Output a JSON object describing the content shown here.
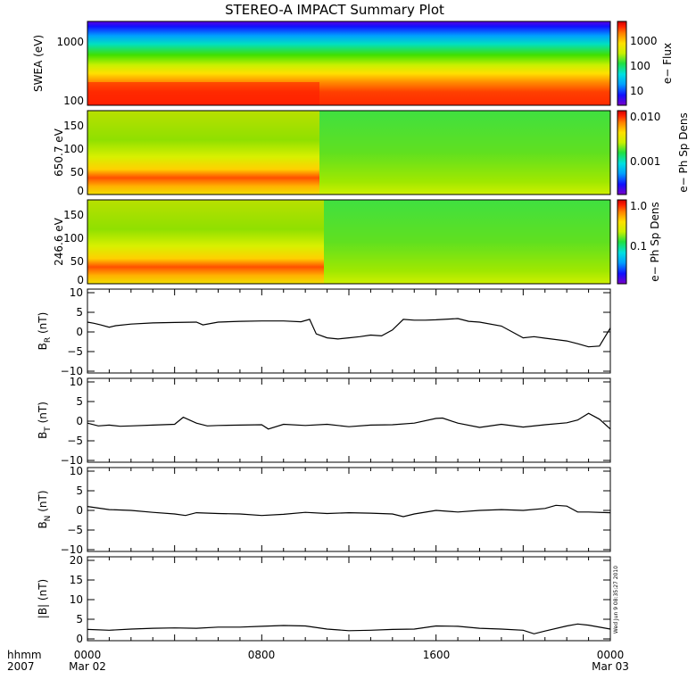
{
  "title": "STEREO-A IMPACT Summary Plot",
  "stamp": "Wed Jun 9 08:35:27 2010",
  "time_axis": {
    "corner_label": "hhmm",
    "corner_year": "2007",
    "ticks": [
      {
        "time": "0000",
        "date": "Mar 02"
      },
      {
        "time": "0800",
        "date": ""
      },
      {
        "time": "1600",
        "date": ""
      },
      {
        "time": "0000",
        "date": "Mar 03"
      }
    ]
  },
  "colors": {
    "line": "#000000",
    "background": "#ffffff",
    "colormap": [
      "#7a00c8",
      "#1010ff",
      "#00a0ff",
      "#00e0e0",
      "#20e040",
      "#c8f000",
      "#ffe000",
      "#ff8000",
      "#ff2000",
      "#d00000"
    ]
  },
  "chart_data": [
    {
      "type": "heatmap",
      "name": "swea",
      "ylabel": "SWEA (eV)",
      "yscale": "log",
      "yticks": [
        "1000",
        "100"
      ],
      "colorbar": {
        "label": "e− Flux",
        "scale": "log",
        "ticks": [
          "1000",
          "100",
          "10"
        ]
      },
      "description": "energy-time spectrogram; high flux (red) near 100 eV, falling to blue above ~1500 eV"
    },
    {
      "type": "heatmap",
      "name": "pad_650",
      "ylabel": "650.7 eV",
      "ylim": [
        0,
        180
      ],
      "yticks": [
        "150",
        "100",
        "50",
        "0"
      ],
      "colorbar": {
        "label": "e− Ph Sp Dens",
        "scale": "log",
        "ticks": [
          "0.010",
          "0.001"
        ]
      },
      "description": "pitch-angle distribution; enhanced (red) near 30-40 deg until ~10:00"
    },
    {
      "type": "heatmap",
      "name": "pad_246",
      "ylabel": "246.6 eV",
      "ylim": [
        0,
        180
      ],
      "yticks": [
        "150",
        "100",
        "50",
        "0"
      ],
      "colorbar": {
        "label": "e− Ph Sp Dens",
        "scale": "log",
        "ticks": [
          "1.0",
          "0.1"
        ]
      },
      "description": "pitch-angle distribution; enhanced (red) near 30-40 deg until ~10:00"
    },
    {
      "type": "line",
      "name": "br",
      "ylabel_main": "B",
      "ylabel_sub": "R",
      "ylabel_unit": " (nT)",
      "ylim": [
        -10,
        10
      ],
      "yticks": [
        "10",
        "5",
        "0",
        "−5",
        "−10"
      ],
      "x_hours": [
        0,
        0.3,
        0.6,
        1,
        1.3,
        2,
        3,
        4,
        5,
        5.3,
        6,
        7,
        8,
        9,
        9.8,
        10.2,
        10.5,
        11,
        11.5,
        12,
        12.5,
        13,
        13.5,
        14,
        14.5,
        15,
        15.5,
        16,
        17,
        17.5,
        18,
        19,
        19.5,
        20,
        20.5,
        21,
        22,
        22.5,
        23,
        23.5,
        24
      ],
      "y": [
        2.5,
        2.2,
        1.8,
        1.2,
        1.6,
        2,
        2.3,
        2.4,
        2.5,
        1.8,
        2.5,
        2.7,
        2.8,
        2.8,
        2.6,
        3.2,
        -0.5,
        -1.5,
        -1.8,
        -1.5,
        -1.2,
        -0.8,
        -1,
        0.5,
        3.2,
        3,
        3,
        3.1,
        3.4,
        2.7,
        2.5,
        1.5,
        0,
        -1.5,
        -1.2,
        -1.6,
        -2.3,
        -3,
        -3.8,
        -3.6,
        1
      ]
    },
    {
      "type": "line",
      "name": "bt",
      "ylabel_main": "B",
      "ylabel_sub": "T",
      "ylabel_unit": " (nT)",
      "ylim": [
        -10,
        10
      ],
      "yticks": [
        "10",
        "5",
        "0",
        "−5",
        "−10"
      ],
      "x_hours": [
        0,
        0.5,
        1,
        1.5,
        2,
        3,
        4,
        4.4,
        5,
        5.5,
        6,
        7,
        8,
        8.3,
        9,
        10,
        11,
        12,
        13,
        14,
        15,
        16,
        16.3,
        17,
        18,
        19,
        20,
        21,
        22,
        22.5,
        23,
        23.5,
        24
      ],
      "y": [
        -0.5,
        -1.2,
        -1,
        -1.3,
        -1.2,
        -1,
        -0.8,
        1,
        -0.5,
        -1.2,
        -1.1,
        -1,
        -0.9,
        -2,
        -0.8,
        -1.1,
        -0.8,
        -1.4,
        -1,
        -0.9,
        -0.5,
        0.7,
        0.8,
        -0.5,
        -1.6,
        -0.8,
        -1.5,
        -0.9,
        -0.4,
        0.3,
        2,
        0.5,
        -2
      ]
    },
    {
      "type": "line",
      "name": "bn",
      "ylabel_main": "B",
      "ylabel_sub": "N",
      "ylabel_unit": " (nT)",
      "ylim": [
        -10,
        10
      ],
      "yticks": [
        "10",
        "5",
        "0",
        "−5",
        "−10"
      ],
      "x_hours": [
        0,
        0.5,
        1,
        2,
        3,
        4,
        4.5,
        5,
        6,
        7,
        8,
        9,
        10,
        11,
        12,
        13,
        14,
        14.5,
        15,
        16,
        17,
        18,
        19,
        20,
        21,
        21.5,
        22,
        22.5,
        23,
        24
      ],
      "y": [
        1,
        0.6,
        0.2,
        0,
        -0.5,
        -0.9,
        -1.3,
        -0.6,
        -0.8,
        -0.9,
        -1.3,
        -1,
        -0.5,
        -0.8,
        -0.6,
        -0.7,
        -0.9,
        -1.6,
        -0.9,
        0,
        -0.4,
        0,
        0.2,
        0,
        0.5,
        1.3,
        1.1,
        -0.4,
        -0.4,
        -0.6
      ]
    },
    {
      "type": "line",
      "name": "bmag",
      "ylabel_main": "|B|",
      "ylabel_sub": "",
      "ylabel_unit": " (nT)",
      "ylim": [
        0,
        20
      ],
      "yticks": [
        "20",
        "15",
        "10",
        "5",
        "0"
      ],
      "x_hours": [
        0,
        1,
        2,
        3,
        4,
        5,
        6,
        7,
        8,
        9,
        10,
        11,
        12,
        13,
        14,
        15,
        16,
        17,
        18,
        19,
        20,
        20.5,
        21,
        22,
        22.5,
        23,
        24
      ],
      "y": [
        2.4,
        2.2,
        2.5,
        2.7,
        2.8,
        2.7,
        3,
        3,
        3.2,
        3.4,
        3.3,
        2.5,
        2.1,
        2.2,
        2.4,
        2.5,
        3.3,
        3.2,
        2.7,
        2.5,
        2.2,
        1.3,
        2,
        3.3,
        3.8,
        3.5,
        2.5
      ]
    }
  ]
}
